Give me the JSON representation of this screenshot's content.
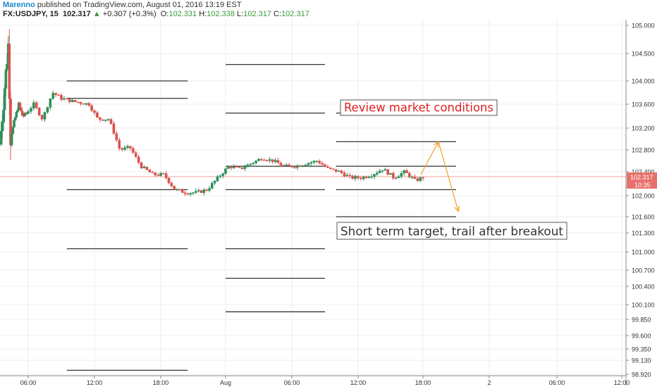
{
  "header": {
    "author": "Marenno",
    "published": "published on TradingView.com, August 01, 2016 13:19 EST",
    "symbol": "FX:USDJPY, 15",
    "last": "102.317",
    "change_arrow": "▲",
    "change": "+0.307 (+0.3%)",
    "o_label": "O:",
    "o": "102.331",
    "h_label": "H:",
    "h": "102.338",
    "l_label": "L:",
    "l": "102.317",
    "c_label": "C:",
    "c": "102.317"
  },
  "colors": {
    "up_candle": "#2f8f5b",
    "down_candle": "#d9534f",
    "price_line": "#f5a0a0",
    "price_tag": "#e8706a",
    "level_line": "#333333",
    "arrow": "#f0a830",
    "red_text": "#e02020"
  },
  "chart_data": {
    "type": "candlestick",
    "symbol": "FX:USDJPY",
    "interval": "15",
    "price_ticks": [
      "105.000",
      "104.500",
      "104.000",
      "103.600",
      "103.200",
      "102.800",
      "102.400",
      "102.000",
      "101.600",
      "101.300",
      "101.000",
      "100.700",
      "100.400",
      "100.100",
      "99.850",
      "99.600",
      "99.350",
      "99.130",
      "98.920"
    ],
    "time_ticks": [
      "06:00",
      "12:00",
      "18:00",
      "Aug",
      "06:00",
      "12:00",
      "18:00",
      "2",
      "06:00",
      "12:00"
    ],
    "last_price": "102.317",
    "countdown": "10:35",
    "annotations": [
      {
        "text": "Review market conditions"
      },
      {
        "text": "Short term target, trail after breakout"
      }
    ],
    "levels": [
      {
        "price": 104.0,
        "t_start": 9.5,
        "t_end": 20.5
      },
      {
        "price": 103.7,
        "t_start": 9.5,
        "t_end": 20.5
      },
      {
        "price": 102.1,
        "t_start": 9.5,
        "t_end": 20.5
      },
      {
        "price": 101.05,
        "t_start": 9.5,
        "t_end": 20.5
      },
      {
        "price": 98.98,
        "t_start": 9.5,
        "t_end": 20.5
      },
      {
        "price": 104.3,
        "t_start": 24,
        "t_end": 33
      },
      {
        "price": 103.45,
        "t_start": 24,
        "t_end": 33
      },
      {
        "price": 102.5,
        "t_start": 24,
        "t_end": 33
      },
      {
        "price": 102.1,
        "t_start": 24,
        "t_end": 33
      },
      {
        "price": 101.05,
        "t_start": 24,
        "t_end": 33
      },
      {
        "price": 100.55,
        "t_start": 24,
        "t_end": 33
      },
      {
        "price": 99.98,
        "t_start": 24,
        "t_end": 33
      },
      {
        "price": 103.45,
        "t_start": 34,
        "t_end": 45
      },
      {
        "price": 102.95,
        "t_start": 34,
        "t_end": 45
      },
      {
        "price": 102.5,
        "t_start": 34,
        "t_end": 45
      },
      {
        "price": 102.1,
        "t_start": 34,
        "t_end": 45
      },
      {
        "price": 101.6,
        "t_start": 34,
        "t_end": 45
      }
    ],
    "forecast_arrows": [
      {
        "from": [
          41.8,
          102.35
        ],
        "to": [
          43.4,
          102.95
        ]
      },
      {
        "from": [
          43.4,
          102.95
        ],
        "to": [
          45.2,
          101.7
        ]
      }
    ],
    "close_path": [
      [
        0,
        102.9
      ],
      [
        1.2,
        104.1
      ],
      [
        1.8,
        104.7
      ],
      [
        2.2,
        103.0
      ],
      [
        3,
        103.3
      ],
      [
        4,
        103.6
      ],
      [
        4.8,
        103.4
      ],
      [
        5.8,
        103.45
      ],
      [
        6.5,
        103.6
      ],
      [
        7.3,
        103.35
      ],
      [
        8.2,
        103.8
      ],
      [
        9,
        103.7
      ],
      [
        10,
        103.65
      ],
      [
        11.5,
        103.6
      ],
      [
        12.3,
        103.35
      ],
      [
        13.3,
        103.35
      ],
      [
        13.8,
        103.1
      ],
      [
        14.3,
        102.8
      ],
      [
        15.2,
        102.85
      ],
      [
        16.2,
        102.5
      ],
      [
        17.3,
        102.35
      ],
      [
        18.3,
        102.35
      ],
      [
        19.3,
        102.1
      ],
      [
        20.3,
        102.05
      ],
      [
        21.3,
        102.05
      ],
      [
        22.3,
        102.1
      ],
      [
        23.3,
        102.3
      ],
      [
        24.3,
        102.5
      ],
      [
        25.3,
        102.45
      ],
      [
        26.3,
        102.55
      ],
      [
        27.3,
        102.65
      ],
      [
        28.3,
        102.6
      ],
      [
        29.3,
        102.5
      ],
      [
        30.3,
        102.5
      ],
      [
        31.3,
        102.55
      ],
      [
        32.3,
        102.6
      ],
      [
        33.3,
        102.45
      ],
      [
        34.3,
        102.4
      ],
      [
        35.3,
        102.3
      ],
      [
        36.3,
        102.3
      ],
      [
        37.3,
        102.35
      ],
      [
        38.3,
        102.45
      ],
      [
        39.3,
        102.3
      ],
      [
        40.3,
        102.4
      ],
      [
        41.3,
        102.25
      ],
      [
        42.2,
        102.32
      ]
    ]
  }
}
